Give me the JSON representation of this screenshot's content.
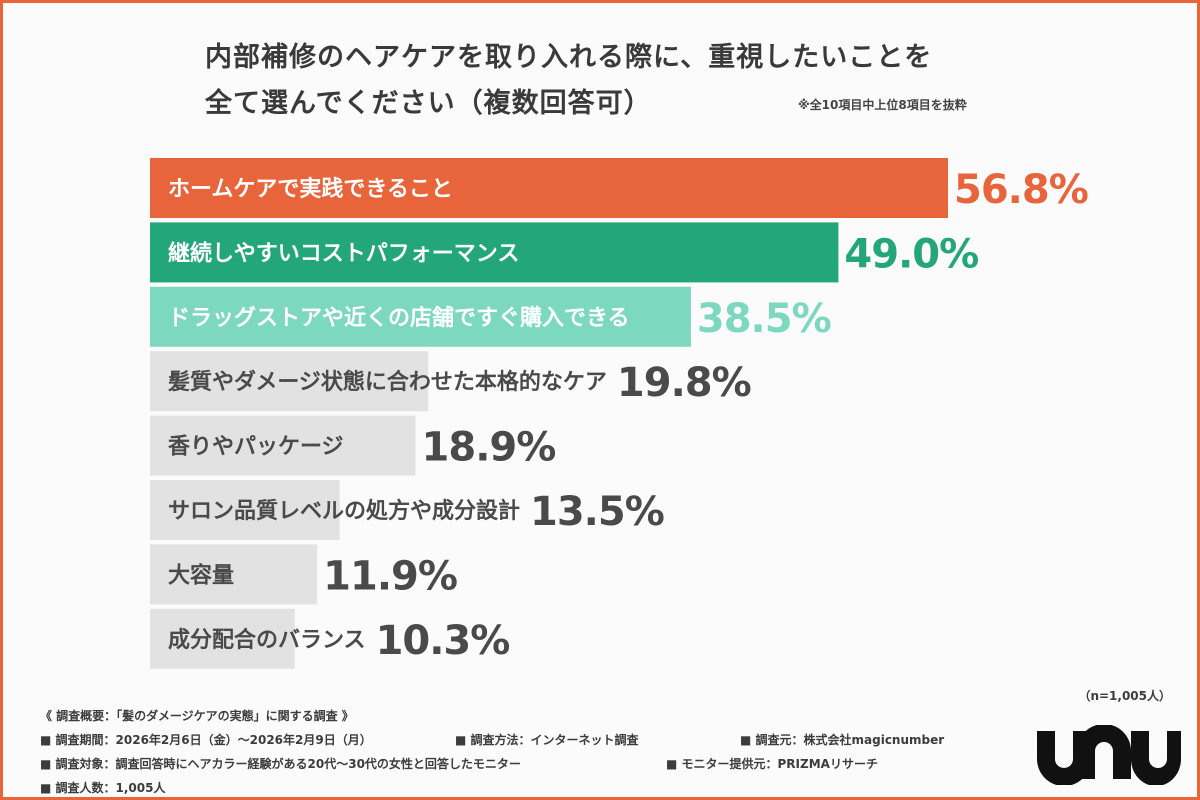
{
  "title_line1": "内部補修のヘアケアを取り入れる際に、重視したいことを",
  "title_line2": "全て選んでください（複数回答可）",
  "note": "※全10項目中上位8項目を抜粋",
  "sample_size": "（n=1,005人）",
  "brand": "unu",
  "colors": {
    "frame": "#e8643a",
    "bar_1": "#e8643a",
    "bar_2": "#23a67a",
    "bar_3": "#7dd8c0",
    "bar_other": "#e2e2e2",
    "text_dark": "#4a4a4a"
  },
  "chart_data": {
    "type": "bar",
    "orientation": "horizontal",
    "title": "内部補修のヘアケアを取り入れる際に、重視したいことを全て選んでください（複数回答可）",
    "unit": "%",
    "xlim": [
      0,
      60
    ],
    "categories": [
      "ホームケアで実践できること",
      "継続しやすいコストパフォーマンス",
      "ドラッグストアや近くの店舗ですぐ購入できる",
      "髪質やダメージ状態に合わせた本格的なケア",
      "香りやパッケージ",
      "サロン品質レベルの処方や成分設計",
      "大容量",
      "成分配合のバランス"
    ],
    "values": [
      56.8,
      49.0,
      38.5,
      19.8,
      18.9,
      13.5,
      11.9,
      10.3
    ],
    "value_labels": [
      "56.8%",
      "49.0%",
      "38.5%",
      "19.8%",
      "18.9%",
      "13.5%",
      "11.9%",
      "10.3%"
    ]
  },
  "footer": {
    "heading": "《 調査概要：「髪のダメージケアの実態」に関する調査 》",
    "period": "■ 調査期間：2026年2月6日（金）〜2026年2月9日（月）",
    "method": "■ 調査方法：インターネット調査",
    "organizer": "■ 調査元：株式会社magicnumber",
    "target": "■ 調査対象：調査回答時にヘアカラー経験がある20代〜30代の女性と回答したモニター",
    "provider": "■ モニター提供元：PRIZMAリサーチ",
    "count": "■ 調査人数：1,005人"
  }
}
